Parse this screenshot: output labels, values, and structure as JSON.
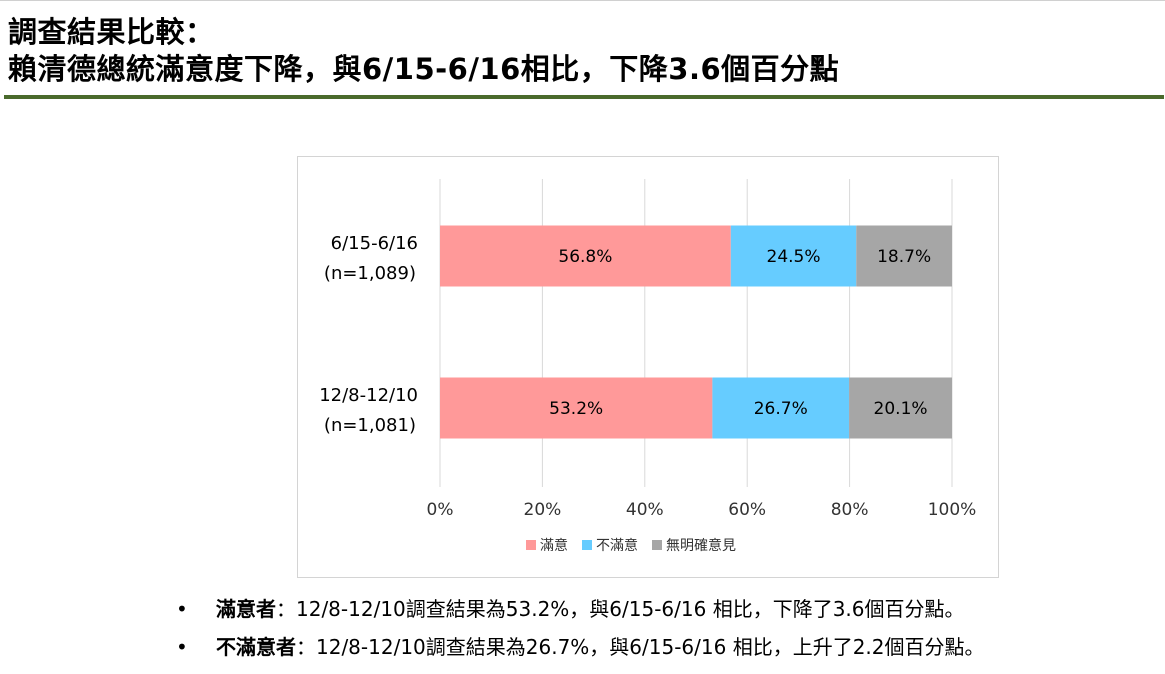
{
  "header": {
    "title_line1": "調查結果比較：",
    "title_line2": "賴清德總統滿意度下降，與6/15-6/16相比，下降3.6個百分點"
  },
  "chart_data": {
    "type": "bar",
    "orientation": "horizontal",
    "stacked": "percent",
    "categories": [
      {
        "label_line1": "6/15-6/16",
        "label_line2": "(n=1,089)"
      },
      {
        "label_line1": "12/8-12/10",
        "label_line2": "(n=1,081)"
      }
    ],
    "series": [
      {
        "name": "滿意",
        "color": "#ff9999",
        "values": [
          56.8,
          53.2
        ],
        "labels": [
          "56.8%",
          "53.2%"
        ]
      },
      {
        "name": "不滿意",
        "color": "#66ccff",
        "values": [
          24.5,
          26.7
        ],
        "labels": [
          "24.5%",
          "26.7%"
        ]
      },
      {
        "name": "無明確意見",
        "color": "#a6a6a6",
        "values": [
          18.7,
          20.1
        ],
        "labels": [
          "18.7%",
          "20.1%"
        ]
      }
    ],
    "x_ticks": [
      "0%",
      "20%",
      "40%",
      "60%",
      "80%",
      "100%"
    ],
    "xlim": [
      0,
      100
    ],
    "grid": true,
    "legend_position": "bottom"
  },
  "bullets": [
    {
      "bullet_char": "•",
      "label": "滿意者",
      "text": "：12/8-12/10調查結果為53.2%，與6/15-6/16 相比，下降了3.6個百分點。"
    },
    {
      "bullet_char": "•",
      "label": "不滿意者",
      "text": "：12/8-12/10調查結果為26.7%，與6/15-6/16 相比，上升了2.2個百分點。"
    }
  ]
}
